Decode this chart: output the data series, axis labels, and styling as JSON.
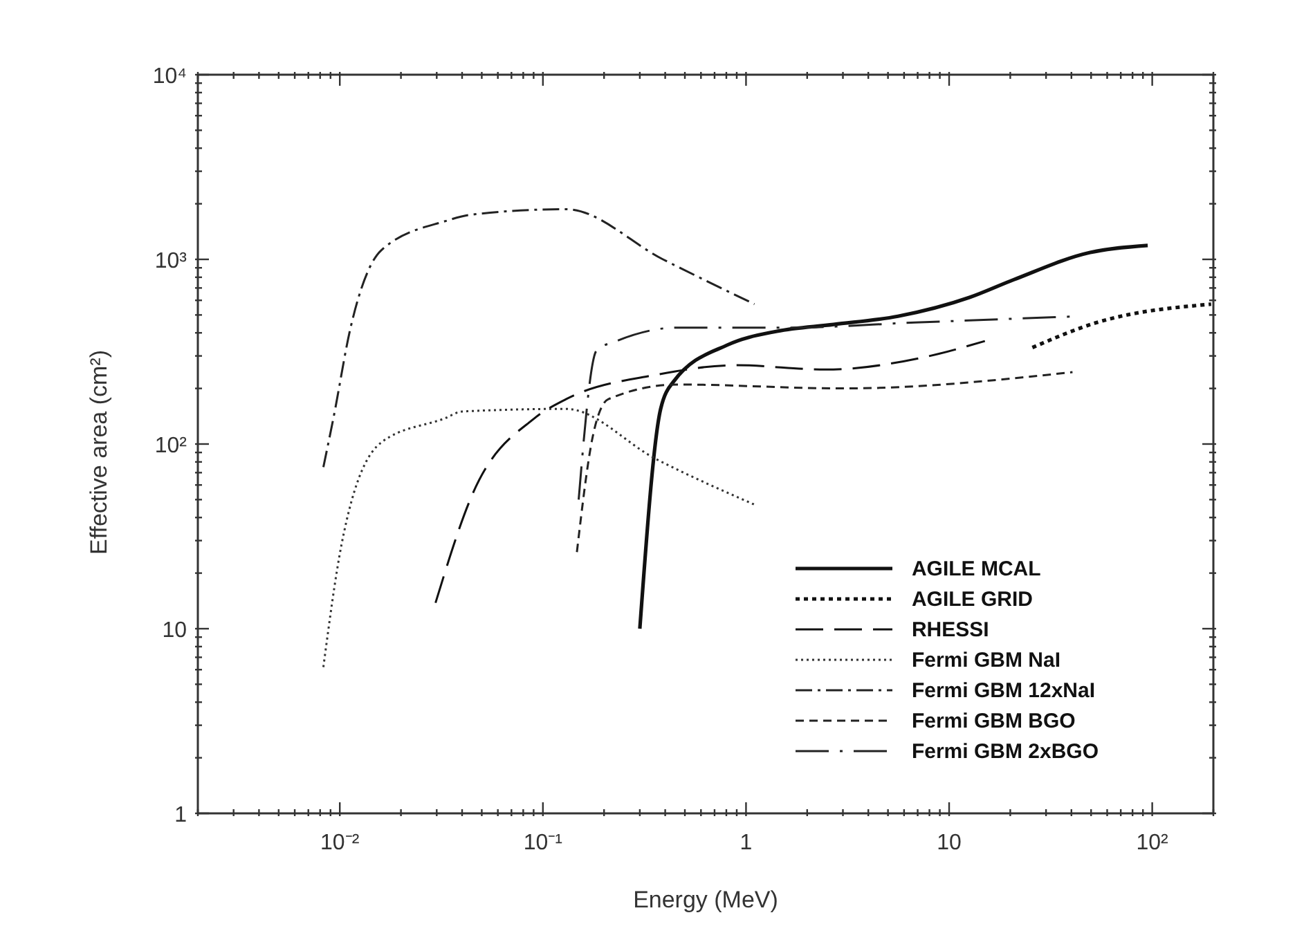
{
  "chart_data": {
    "type": "line",
    "xlabel": "Energy (MeV)",
    "ylabel": "Effective area (cm²)",
    "log": "xy",
    "legend": "bottom right",
    "marker": "none",
    "xlim": [
      0.002,
      200
    ],
    "ylim": [
      1,
      10000
    ],
    "xticks": [
      {
        "value": 0.002,
        "label": null
      },
      {
        "value": 0.003,
        "label": null
      },
      {
        "value": 0.004,
        "label": null
      },
      {
        "value": 0.005,
        "label": null
      },
      {
        "value": 0.006,
        "label": null
      },
      {
        "value": 0.007,
        "label": null
      },
      {
        "value": 0.008,
        "label": null
      },
      {
        "value": 0.009,
        "label": null
      },
      {
        "value": 0.01,
        "label": "10⁻²"
      },
      {
        "value": 0.02,
        "label": null
      },
      {
        "value": 0.03,
        "label": null
      },
      {
        "value": 0.04,
        "label": null
      },
      {
        "value": 0.05,
        "label": null
      },
      {
        "value": 0.06,
        "label": null
      },
      {
        "value": 0.07,
        "label": null
      },
      {
        "value": 0.08,
        "label": null
      },
      {
        "value": 0.09,
        "label": null
      },
      {
        "value": 0.1,
        "label": "10⁻¹"
      },
      {
        "value": 0.2,
        "label": null
      },
      {
        "value": 0.3,
        "label": null
      },
      {
        "value": 0.4,
        "label": null
      },
      {
        "value": 0.5,
        "label": null
      },
      {
        "value": 0.6,
        "label": null
      },
      {
        "value": 0.7,
        "label": null
      },
      {
        "value": 0.8,
        "label": null
      },
      {
        "value": 0.9,
        "label": null
      },
      1,
      {
        "value": 2,
        "label": null
      },
      {
        "value": 3,
        "label": null
      },
      {
        "value": 4,
        "label": null
      },
      {
        "value": 5,
        "label": null
      },
      {
        "value": 6,
        "label": null
      },
      {
        "value": 7,
        "label": null
      },
      {
        "value": 8,
        "label": null
      },
      {
        "value": 9,
        "label": null
      },
      10,
      {
        "value": 20,
        "label": null
      },
      {
        "value": 30,
        "label": null
      },
      {
        "value": 40,
        "label": null
      },
      {
        "value": 50,
        "label": null
      },
      {
        "value": 60,
        "label": null
      },
      {
        "value": 70,
        "label": null
      },
      {
        "value": 80,
        "label": null
      },
      {
        "value": 90,
        "label": null
      },
      {
        "value": 100,
        "label": "10²"
      },
      {
        "value": 200,
        "label": null
      }
    ],
    "yticks": [
      1,
      {
        "value": 2,
        "label": null
      },
      {
        "value": 3,
        "label": null
      },
      {
        "value": 4,
        "label": null
      },
      {
        "value": 5,
        "label": null
      },
      {
        "value": 6,
        "label": null
      },
      {
        "value": 7,
        "label": null
      },
      {
        "value": 8,
        "label": null
      },
      {
        "value": 9,
        "label": null
      },
      10,
      {
        "value": 20,
        "label": null
      },
      {
        "value": 30,
        "label": null
      },
      {
        "value": 40,
        "label": null
      },
      {
        "value": 50,
        "label": null
      },
      {
        "value": 60,
        "label": null
      },
      {
        "value": 70,
        "label": null
      },
      {
        "value": 80,
        "label": null
      },
      {
        "value": 90,
        "label": null
      },
      {
        "value": 100,
        "label": "10²"
      },
      {
        "value": 200,
        "label": null
      },
      {
        "value": 300,
        "label": null
      },
      {
        "value": 400,
        "label": null
      },
      {
        "value": 500,
        "label": null
      },
      {
        "value": 600,
        "label": null
      },
      {
        "value": 700,
        "label": null
      },
      {
        "value": 800,
        "label": null
      },
      {
        "value": 900,
        "label": null
      },
      {
        "value": 1000,
        "label": "10³"
      },
      {
        "value": 2000,
        "label": null
      },
      {
        "value": 3000,
        "label": null
      },
      {
        "value": 4000,
        "label": null
      },
      {
        "value": 5000,
        "label": null
      },
      {
        "value": 6000,
        "label": null
      },
      {
        "value": 7000,
        "label": null
      },
      {
        "value": 8000,
        "label": null
      },
      {
        "value": 9000,
        "label": null
      },
      {
        "value": 10000,
        "label": "10⁴"
      }
    ],
    "series": [
      {
        "name": "AGILE MCAL",
        "color": "#111111",
        "line_style": "solid",
        "x": [
          0.3,
          0.38,
          0.44,
          0.81,
          1.42,
          2.7,
          5.6,
          12.6,
          20.8,
          49.5,
          95
        ],
        "values": [
          10,
          155,
          218,
          344,
          408,
          444,
          492,
          622,
          776,
          1090,
          1190
        ]
      },
      {
        "name": "AGILE GRID",
        "color": "#111111",
        "line_style": "dotted",
        "x": [
          25.7,
          52,
          195
        ],
        "values": [
          333,
          451,
          572
        ]
      },
      {
        "name": "RHESSI",
        "color": "#111111",
        "line_style": "dashed",
        "x": [
          0.0296,
          0.045,
          0.091,
          0.13,
          0.36,
          0.9,
          2.46,
          7.6,
          15
        ],
        "values": [
          13.8,
          53.5,
          138,
          175,
          237,
          267,
          253,
          296,
          361
        ]
      },
      {
        "name": "Fermi GBM NaI",
        "color": "#333333",
        "line_style": "dotted",
        "x": [
          0.0083,
          0.0102,
          0.016,
          0.033,
          0.04,
          0.13,
          0.36,
          1.1
        ],
        "values": [
          6.2,
          28.6,
          102,
          138,
          150,
          155,
          83,
          47
        ]
      },
      {
        "name": "Fermi GBM 12xNaI",
        "color": "#222222",
        "line_style": "dashed",
        "x": [
          0.0083,
          0.0093,
          0.0113,
          0.016,
          0.033,
          0.045,
          0.13,
          0.39,
          1.1
        ],
        "values": [
          75,
          138,
          427,
          1120,
          1610,
          1750,
          1870,
          1000,
          572
        ]
      },
      {
        "name": "Fermi GBM BGO",
        "color": "#222222",
        "line_style": "dashed",
        "x": [
          0.147,
          0.176,
          0.21,
          0.46,
          3.0,
          40.5
        ],
        "values": [
          26,
          110,
          175,
          210,
          200,
          245
        ]
      },
      {
        "name": "Fermi GBM 2xBGO",
        "color": "#222222",
        "line_style": "dashed",
        "x": [
          0.15,
          0.184,
          0.23,
          0.46,
          1.66,
          6.8,
          40
        ],
        "values": [
          50,
          322,
          361,
          427,
          427,
          455,
          490
        ]
      }
    ]
  }
}
